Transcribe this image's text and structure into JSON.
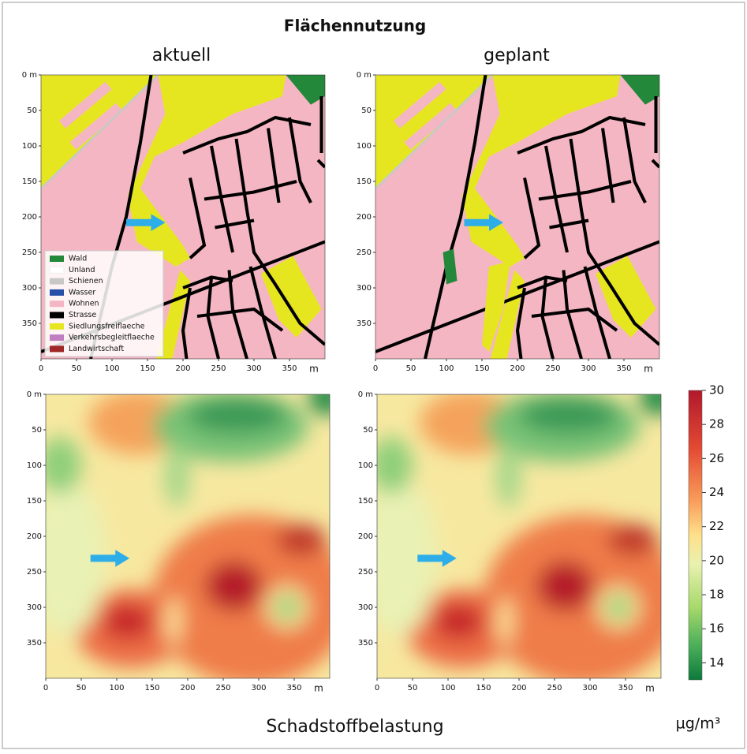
{
  "title": "Flächennutzung",
  "panels": [
    {
      "label": "aktuell"
    },
    {
      "label": "geplant"
    }
  ],
  "axes": {
    "xlim": [
      0,
      400
    ],
    "ylim": [
      0,
      400
    ],
    "xticks": [
      0,
      50,
      100,
      150,
      200,
      250,
      300,
      350
    ],
    "yticks": [
      {
        "value": 0,
        "label": "0 m"
      },
      50,
      100,
      150,
      200,
      250,
      300,
      350
    ],
    "x_unit": "m"
  },
  "legend": [
    {
      "name": "Wald",
      "color": "#23883a"
    },
    {
      "name": "Unland",
      "color": "#ffffff"
    },
    {
      "name": "Schienen",
      "color": "#c8c8c8"
    },
    {
      "name": "Wasser",
      "color": "#2850a8"
    },
    {
      "name": "Wohnen",
      "color": "#f4b6c2"
    },
    {
      "name": "Strasse",
      "color": "#000000"
    },
    {
      "name": "Siedlungsfreiflaeche",
      "color": "#e6e620"
    },
    {
      "name": "Verkehrsbegleitflaeche",
      "color": "#c07ec0"
    },
    {
      "name": "Landwirtschaft",
      "color": "#a02828"
    }
  ],
  "colorbar": {
    "lim": [
      13,
      30
    ],
    "ticks": [
      14,
      16,
      18,
      20,
      22,
      24,
      26,
      28,
      30
    ]
  },
  "footer": "Schadstoffbelastung",
  "unit": "µg/m³"
}
